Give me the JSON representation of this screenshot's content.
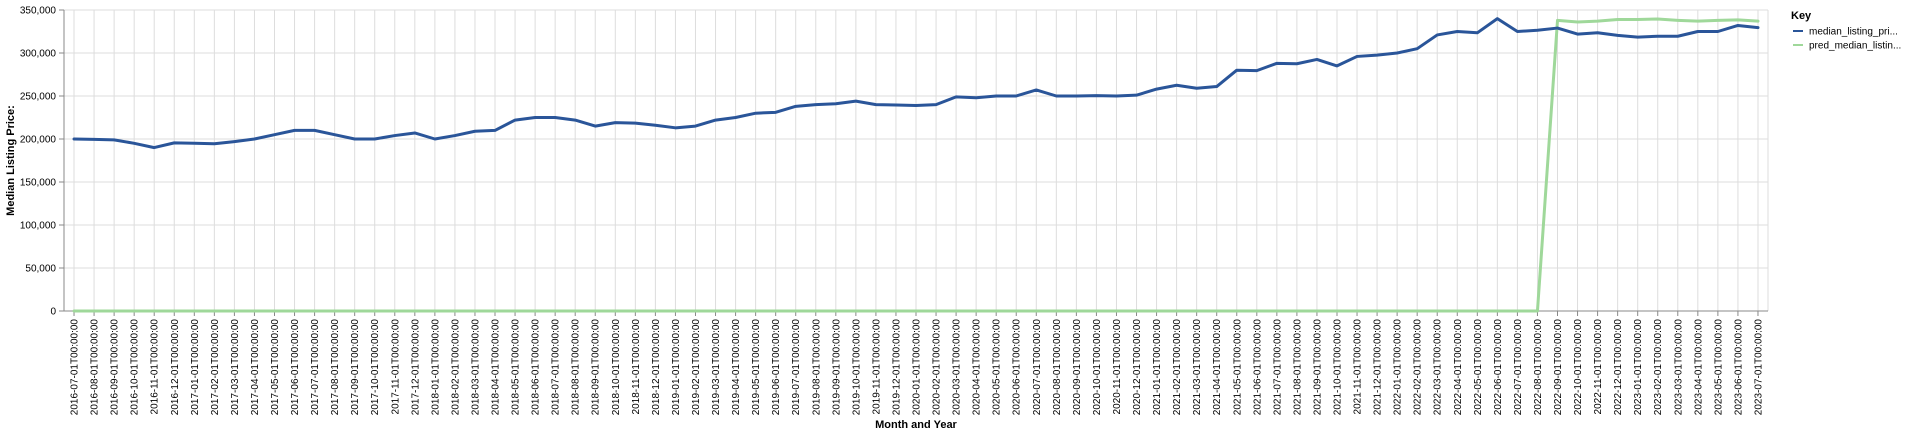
{
  "colors": {
    "actual": "#2a5599",
    "predicted": "#9fd89a",
    "grid": "#dddddd",
    "axis": "#888888"
  },
  "chart_data": {
    "type": "line",
    "xlabel": "Month and Year",
    "ylabel": "Median Listing Price:",
    "ylim": [
      0,
      350000
    ],
    "y_ticks": [
      "0",
      "50,000",
      "100,000",
      "150,000",
      "200,000",
      "250,000",
      "300,000",
      "350,000"
    ],
    "y_tick_values": [
      0,
      50000,
      100000,
      150000,
      200000,
      250000,
      300000,
      350000
    ],
    "grid": true,
    "legend_position": "right",
    "legend_title": "Key",
    "categories": [
      "2016-07-01T00:00:00",
      "2016-08-01T00:00:00",
      "2016-09-01T00:00:00",
      "2016-10-01T00:00:00",
      "2016-11-01T00:00:00",
      "2016-12-01T00:00:00",
      "2017-01-01T00:00:00",
      "2017-02-01T00:00:00",
      "2017-03-01T00:00:00",
      "2017-04-01T00:00:00",
      "2017-05-01T00:00:00",
      "2017-06-01T00:00:00",
      "2017-07-01T00:00:00",
      "2017-08-01T00:00:00",
      "2017-09-01T00:00:00",
      "2017-10-01T00:00:00",
      "2017-11-01T00:00:00",
      "2017-12-01T00:00:00",
      "2018-01-01T00:00:00",
      "2018-02-01T00:00:00",
      "2018-03-01T00:00:00",
      "2018-04-01T00:00:00",
      "2018-05-01T00:00:00",
      "2018-06-01T00:00:00",
      "2018-07-01T00:00:00",
      "2018-08-01T00:00:00",
      "2018-09-01T00:00:00",
      "2018-10-01T00:00:00",
      "2018-11-01T00:00:00",
      "2018-12-01T00:00:00",
      "2019-01-01T00:00:00",
      "2019-02-01T00:00:00",
      "2019-03-01T00:00:00",
      "2019-04-01T00:00:00",
      "2019-05-01T00:00:00",
      "2019-06-01T00:00:00",
      "2019-07-01T00:00:00",
      "2019-08-01T00:00:00",
      "2019-09-01T00:00:00",
      "2019-10-01T00:00:00",
      "2019-11-01T00:00:00",
      "2019-12-01T00:00:00",
      "2020-01-01T00:00:00",
      "2020-02-01T00:00:00",
      "2020-03-01T00:00:00",
      "2020-04-01T00:00:00",
      "2020-05-01T00:00:00",
      "2020-06-01T00:00:00",
      "2020-07-01T00:00:00",
      "2020-08-01T00:00:00",
      "2020-09-01T00:00:00",
      "2020-10-01T00:00:00",
      "2020-11-01T00:00:00",
      "2020-12-01T00:00:00",
      "2021-01-01T00:00:00",
      "2021-02-01T00:00:00",
      "2021-03-01T00:00:00",
      "2021-04-01T00:00:00",
      "2021-05-01T00:00:00",
      "2021-06-01T00:00:00",
      "2021-07-01T00:00:00",
      "2021-08-01T00:00:00",
      "2021-09-01T00:00:00",
      "2021-10-01T00:00:00",
      "2021-11-01T00:00:00",
      "2021-12-01T00:00:00",
      "2022-01-01T00:00:00",
      "2022-02-01T00:00:00",
      "2022-03-01T00:00:00",
      "2022-04-01T00:00:00",
      "2022-05-01T00:00:00",
      "2022-06-01T00:00:00",
      "2022-07-01T00:00:00",
      "2022-08-01T00:00:00",
      "2022-09-01T00:00:00",
      "2022-10-01T00:00:00",
      "2022-11-01T00:00:00",
      "2022-12-01T00:00:00",
      "2023-01-01T00:00:00",
      "2023-02-01T00:00:00",
      "2023-03-01T00:00:00",
      "2023-04-01T00:00:00",
      "2023-05-01T00:00:00",
      "2023-06-01T00:00:00",
      "2023-07-01T00:00:00"
    ],
    "series": [
      {
        "name": "median_listing_pri...",
        "color_key": "actual",
        "values": [
          200000,
          199500,
          199000,
          195000,
          190000,
          195500,
          195000,
          194500,
          197000,
          200000,
          205000,
          210000,
          210000,
          205000,
          200000,
          200000,
          204000,
          207000,
          200000,
          204000,
          209000,
          210000,
          222000,
          225000,
          225000,
          222000,
          215000,
          219000,
          218500,
          216000,
          213000,
          215000,
          222000,
          225000,
          230000,
          231000,
          238000,
          240000,
          241000,
          244000,
          240000,
          239500,
          239000,
          240000,
          249000,
          248000,
          250000,
          250000,
          257000,
          250000,
          250000,
          250500,
          250000,
          251000,
          258000,
          262500,
          259000,
          261000,
          280000,
          279500,
          288000,
          287500,
          292500,
          285000,
          296000,
          297500,
          300000,
          305000,
          321000,
          325000,
          323500,
          340000,
          325000,
          326500,
          329000,
          322000,
          323500,
          320500,
          318500,
          319500,
          319500,
          325000,
          325000,
          332000,
          329500
        ]
      },
      {
        "name": "pred_median_listin...",
        "color_key": "predicted",
        "values": [
          0,
          0,
          0,
          0,
          0,
          0,
          0,
          0,
          0,
          0,
          0,
          0,
          0,
          0,
          0,
          0,
          0,
          0,
          0,
          0,
          0,
          0,
          0,
          0,
          0,
          0,
          0,
          0,
          0,
          0,
          0,
          0,
          0,
          0,
          0,
          0,
          0,
          0,
          0,
          0,
          0,
          0,
          0,
          0,
          0,
          0,
          0,
          0,
          0,
          0,
          0,
          0,
          0,
          0,
          0,
          0,
          0,
          0,
          0,
          0,
          0,
          0,
          0,
          0,
          0,
          0,
          0,
          0,
          0,
          0,
          0,
          0,
          0,
          0,
          338000,
          336000,
          337000,
          339000,
          339000,
          339500,
          338000,
          337000,
          338000,
          338500,
          337000
        ]
      }
    ]
  }
}
